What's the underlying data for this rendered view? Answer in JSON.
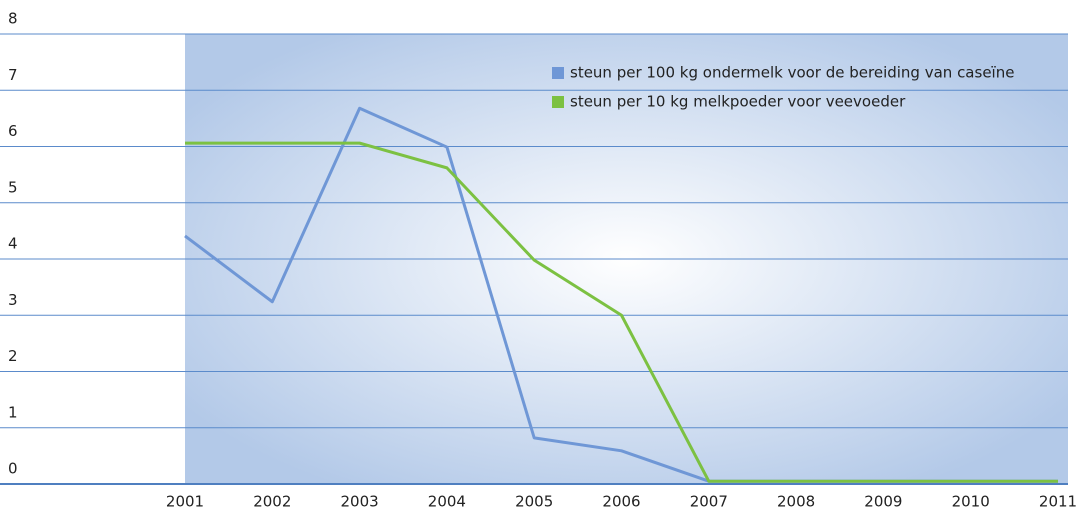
{
  "chart_data": {
    "type": "line",
    "x": [
      2001,
      2002,
      2003,
      2004,
      2005,
      2006,
      2007,
      2008,
      2009,
      2010,
      2011
    ],
    "series": [
      {
        "name": "steun per 100 kg ondermelk voor de bereiding van caseïne",
        "color": "#6f97d6",
        "values": [
          4.41,
          3.24,
          6.68,
          5.99,
          0.82,
          0.59,
          0.05,
          0.05,
          0.05,
          0.05,
          0.05
        ]
      },
      {
        "name": "steun per 10 kg melkpoeder voor veevoeder",
        "color": "#7cc142",
        "values": [
          6.06,
          6.06,
          6.06,
          5.62,
          3.98,
          3.0,
          0.05,
          0.05,
          0.05,
          0.05,
          0.05
        ]
      }
    ],
    "xlim": [
      2001,
      2011
    ],
    "xticks": [
      2001,
      2002,
      2003,
      2004,
      2005,
      2006,
      2007,
      2008,
      2009,
      2010,
      2011
    ],
    "ylim": [
      0,
      8
    ],
    "yticks": [
      0,
      1,
      2,
      3,
      4,
      5,
      6,
      7,
      8
    ],
    "grid": true,
    "legend": "top-right"
  }
}
